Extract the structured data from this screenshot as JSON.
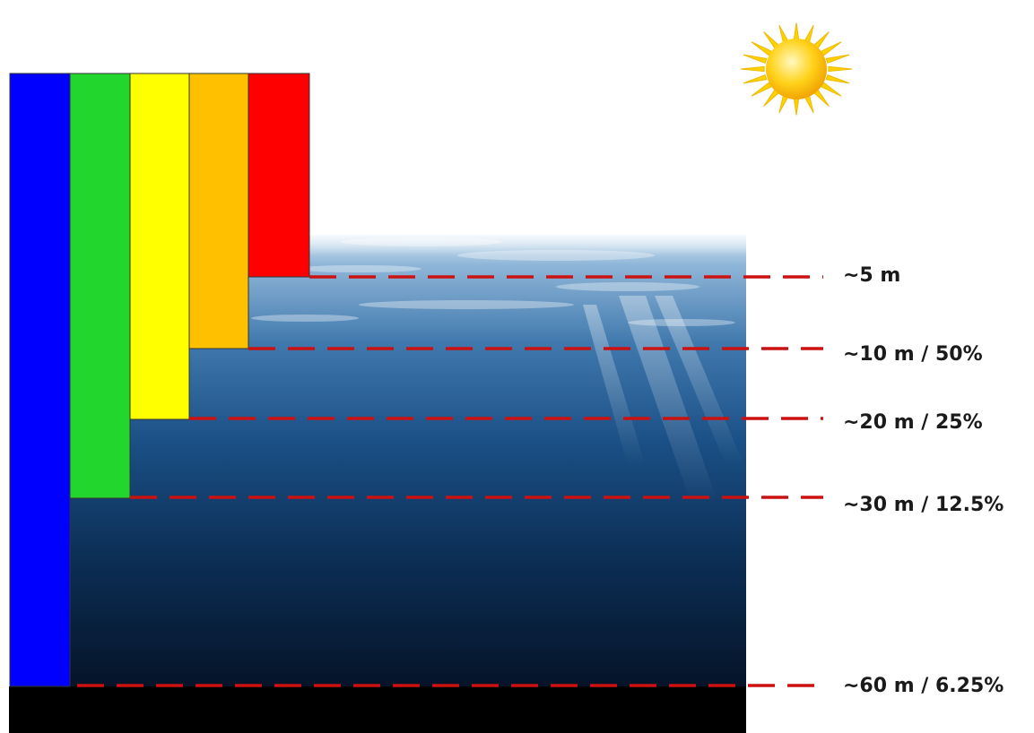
{
  "colors": {
    "red": "#ff0000",
    "orange": "#ffc000",
    "yellow": "#ffff00",
    "green": "#22d62e",
    "blue": "#0000ff",
    "line": "#cc1111",
    "water_top": "#6e9cc6",
    "water_mid": "#144a80",
    "water_deep": "#041226",
    "seabed": "#000000"
  },
  "icons": {
    "sun": "sun-icon"
  },
  "color_bands": [
    {
      "color_name": "blue",
      "penetration_label": "~60 m / 6.25%"
    },
    {
      "color_name": "green",
      "penetration_label": "~30 m / 12.5%"
    },
    {
      "color_name": "yellow",
      "penetration_label": "~20 m / 25%"
    },
    {
      "color_name": "orange",
      "penetration_label": "~10 m / 50%"
    },
    {
      "color_name": "red",
      "penetration_label": "~5 m"
    }
  ],
  "depth_labels": {
    "d5": "~5 m",
    "d10": "~10 m / 50%",
    "d20": "~20 m / 25%",
    "d30": "~30 m / 12.5%",
    "d60": "~60 m / 6.25%"
  }
}
